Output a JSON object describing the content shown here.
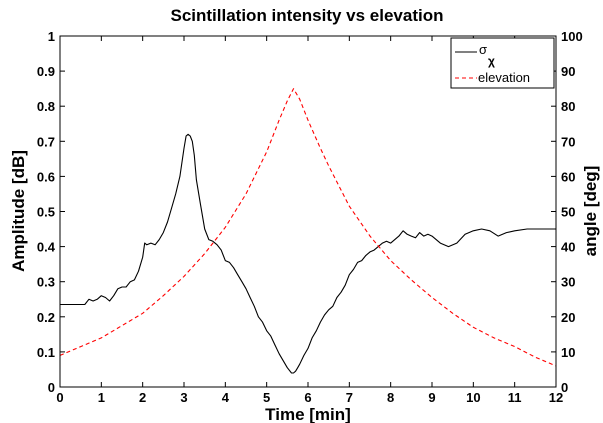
{
  "chart_data": {
    "type": "line",
    "title": "Scintillation intensity vs elevation",
    "xlabel": "Time [min]",
    "ylabel_left": "Amplitude [dB]",
    "ylabel_right": "angle [deg]",
    "xlim": [
      0,
      12
    ],
    "ylim_left": [
      0,
      1
    ],
    "ylim_right": [
      0,
      100
    ],
    "x_ticks": [
      "0",
      "1",
      "2",
      "3",
      "4",
      "5",
      "6",
      "7",
      "8",
      "9",
      "10",
      "11",
      "12"
    ],
    "y_ticks_left": [
      "0",
      "0.1",
      "0.2",
      "0.3",
      "0.4",
      "0.5",
      "0.6",
      "0.7",
      "0.8",
      "0.9",
      "1"
    ],
    "y_ticks_right": [
      "0",
      "10",
      "20",
      "30",
      "40",
      "50",
      "60",
      "70",
      "80",
      "90",
      "100"
    ],
    "grid": false,
    "legend_position": "top-right",
    "series": [
      {
        "name": "σχ",
        "name_main": "σ",
        "name_sub": "χ",
        "axis": "left",
        "color": "#000000",
        "style": "solid",
        "x": [
          0,
          0.5,
          0.6,
          0.7,
          0.8,
          0.9,
          1.0,
          1.1,
          1.2,
          1.3,
          1.4,
          1.5,
          1.6,
          1.7,
          1.8,
          1.9,
          2.0,
          2.05,
          2.1,
          2.2,
          2.3,
          2.4,
          2.5,
          2.6,
          2.7,
          2.8,
          2.9,
          3.0,
          3.05,
          3.1,
          3.15,
          3.2,
          3.25,
          3.3,
          3.4,
          3.5,
          3.6,
          3.7,
          3.8,
          3.9,
          4.0,
          4.1,
          4.2,
          4.3,
          4.4,
          4.5,
          4.6,
          4.7,
          4.8,
          4.9,
          5.0,
          5.1,
          5.2,
          5.3,
          5.4,
          5.5,
          5.6,
          5.65,
          5.7,
          5.75,
          5.8,
          5.9,
          6.0,
          6.1,
          6.2,
          6.3,
          6.4,
          6.5,
          6.6,
          6.7,
          6.8,
          6.9,
          7.0,
          7.1,
          7.2,
          7.3,
          7.4,
          7.5,
          7.6,
          7.7,
          7.8,
          7.9,
          8.0,
          8.1,
          8.2,
          8.3,
          8.4,
          8.5,
          8.6,
          8.7,
          8.8,
          8.9,
          9.0,
          9.2,
          9.4,
          9.6,
          9.8,
          10.0,
          10.2,
          10.4,
          10.6,
          10.8,
          11.0,
          11.3,
          11.6,
          12.0
        ],
        "values": [
          0.235,
          0.235,
          0.235,
          0.25,
          0.245,
          0.25,
          0.26,
          0.255,
          0.245,
          0.26,
          0.28,
          0.285,
          0.285,
          0.3,
          0.305,
          0.33,
          0.37,
          0.41,
          0.405,
          0.41,
          0.405,
          0.42,
          0.44,
          0.47,
          0.51,
          0.55,
          0.6,
          0.68,
          0.715,
          0.72,
          0.715,
          0.7,
          0.66,
          0.59,
          0.52,
          0.45,
          0.42,
          0.415,
          0.405,
          0.39,
          0.36,
          0.355,
          0.34,
          0.32,
          0.3,
          0.28,
          0.255,
          0.23,
          0.2,
          0.185,
          0.16,
          0.145,
          0.12,
          0.095,
          0.075,
          0.055,
          0.04,
          0.04,
          0.045,
          0.055,
          0.065,
          0.09,
          0.11,
          0.14,
          0.16,
          0.185,
          0.205,
          0.22,
          0.23,
          0.255,
          0.27,
          0.29,
          0.32,
          0.335,
          0.355,
          0.36,
          0.375,
          0.385,
          0.39,
          0.4,
          0.41,
          0.415,
          0.41,
          0.42,
          0.43,
          0.445,
          0.435,
          0.43,
          0.425,
          0.44,
          0.43,
          0.435,
          0.43,
          0.41,
          0.4,
          0.41,
          0.435,
          0.445,
          0.45,
          0.445,
          0.43,
          0.44,
          0.445,
          0.45,
          0.45,
          0.45
        ]
      },
      {
        "name": "elevation",
        "axis": "right",
        "color": "#ff0000",
        "style": "dashed",
        "x": [
          0,
          0.5,
          1,
          1.5,
          2,
          2.5,
          3,
          3.5,
          4,
          4.5,
          5,
          5.3,
          5.5,
          5.65,
          5.8,
          6,
          6.3,
          6.5,
          7,
          7.5,
          8,
          8.5,
          9,
          9.5,
          10,
          10.5,
          11,
          11.5,
          12
        ],
        "values": [
          9,
          11.5,
          14,
          17.5,
          21,
          26,
          31.5,
          38,
          45.5,
          55,
          67,
          76,
          81.5,
          85,
          82,
          76,
          68,
          63,
          51.5,
          43,
          36,
          30.5,
          25.5,
          21,
          17,
          14,
          11.5,
          8.5,
          6
        ]
      }
    ]
  }
}
